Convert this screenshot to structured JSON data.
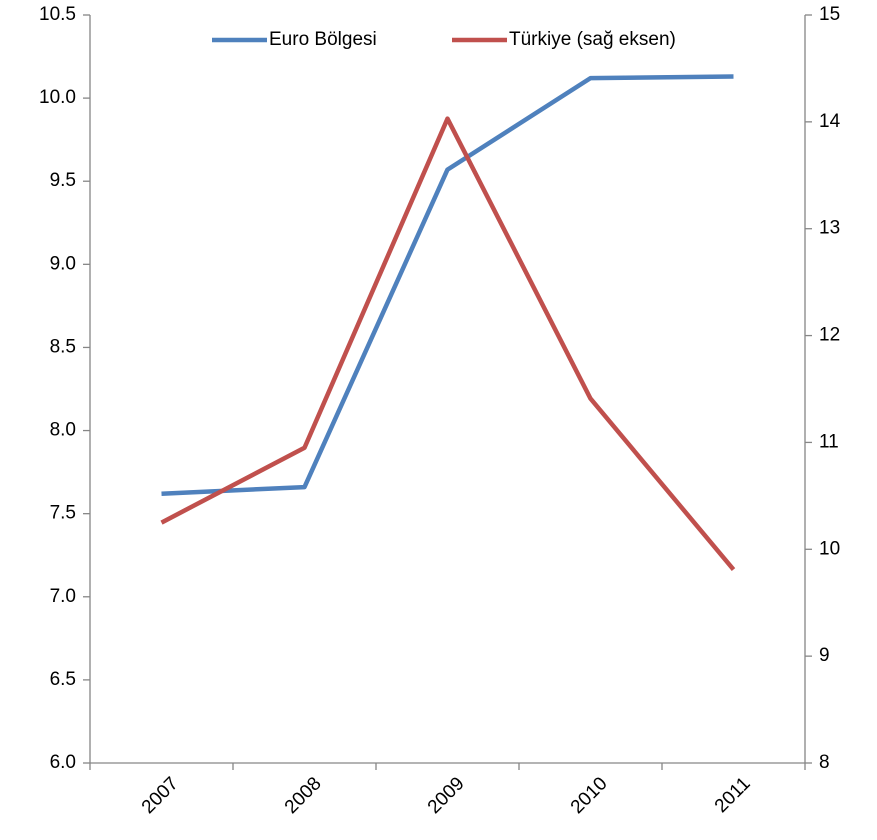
{
  "chart_data": {
    "type": "line",
    "categories": [
      "2007",
      "2008",
      "2009",
      "2010",
      "2011"
    ],
    "series": [
      {
        "name": "Euro Bölgesi",
        "color": "#4f81bd",
        "values": [
          7.62,
          7.66,
          9.57,
          10.12,
          10.13
        ]
      },
      {
        "name": "Türkiye (sağ eksen)",
        "color": "#c0504d",
        "axis": "y2",
        "values": [
          10.25,
          10.95,
          14.03,
          11.41,
          9.81
        ]
      }
    ],
    "ylim": [
      6,
      10.5
    ],
    "yticks": [
      {
        "value": 6,
        "label": "6.0"
      },
      6.5,
      {
        "value": 7,
        "label": "7.0"
      },
      7.5,
      {
        "value": 8,
        "label": "8.0"
      },
      8.5,
      {
        "value": 9,
        "label": "9.0"
      },
      9.5,
      {
        "value": 10,
        "label": "10.0"
      },
      10.5
    ],
    "y2lim": [
      8,
      15
    ],
    "y2ticks": [
      8,
      9,
      10,
      11,
      12,
      13,
      14,
      15
    ],
    "grid": false,
    "legend": "top"
  }
}
